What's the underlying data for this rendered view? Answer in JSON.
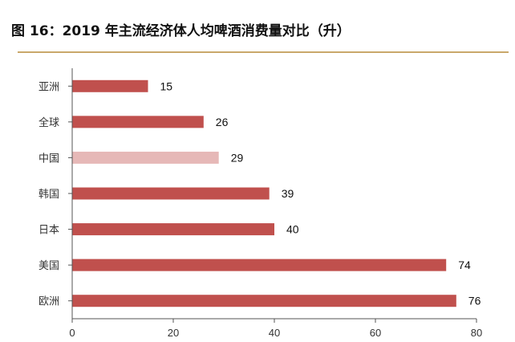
{
  "figure": {
    "title": "图 16：2019 年主流经济体人均啤酒消费量对比（升）"
  },
  "chart_data": {
    "type": "bar",
    "orientation": "horizontal",
    "categories": [
      "亚洲",
      "全球",
      "中国",
      "韩国",
      "日本",
      "美国",
      "欧洲"
    ],
    "values": [
      15,
      26,
      29,
      39,
      40,
      74,
      76
    ],
    "highlight_category": "中国",
    "colors": {
      "bar": "#c0504d",
      "highlight": "#e6b8b7",
      "axis": "#555555",
      "title_rule": "#c9a86a"
    },
    "xlim": [
      0,
      80
    ],
    "xticks": [
      0,
      20,
      40,
      60,
      80
    ],
    "grid": false,
    "legend": "none",
    "data_labels": true
  }
}
